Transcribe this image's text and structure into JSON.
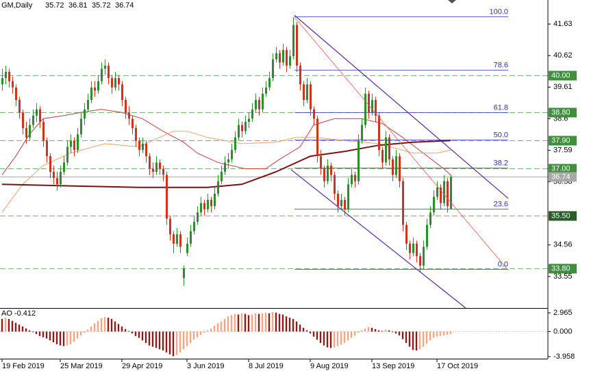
{
  "chart_data": [
    {
      "type": "candlestick",
      "title": "GM,Daily",
      "xlim": [
        -0.6,
        159.4
      ],
      "ylim": [
        32.54,
        42.4
      ],
      "yticks": [
        41.63,
        40.62,
        39.61,
        38.6,
        37.59,
        36.58,
        34.56,
        33.55
      ],
      "xticks": [
        {
          "value": 0,
          "label": "19 Feb 2019"
        },
        {
          "value": 17,
          "label": "25 Mar 2019"
        },
        {
          "value": 35,
          "label": "29 Apr 2019"
        },
        {
          "value": 54,
          "label": "3 Jun 2019"
        },
        {
          "value": 72,
          "label": "8 Jul 2019"
        },
        {
          "value": 90,
          "label": "9 Aug 2019"
        },
        {
          "value": 108,
          "label": "13 Sep 2019"
        },
        {
          "value": 127,
          "label": "17 Oct 2019"
        }
      ],
      "up_color": "#2e8b2e",
      "down_color": "#cc3322",
      "candles": [
        [
          39.7,
          40.2,
          39.5,
          39.9
        ],
        [
          39.9,
          40.3,
          39.7,
          40.1
        ],
        [
          40.1,
          40.2,
          39.6,
          39.8
        ],
        [
          39.8,
          39.95,
          39.4,
          39.6
        ],
        [
          39.6,
          39.7,
          39.0,
          39.2
        ],
        [
          39.2,
          39.3,
          38.6,
          38.8
        ],
        [
          38.8,
          38.9,
          38.1,
          38.3
        ],
        [
          38.3,
          38.5,
          37.8,
          38.0
        ],
        [
          38.0,
          38.6,
          37.9,
          38.4
        ],
        [
          38.4,
          38.9,
          38.3,
          38.7
        ],
        [
          38.7,
          39.1,
          38.5,
          38.9
        ],
        [
          38.9,
          39.0,
          38.3,
          38.5
        ],
        [
          38.5,
          38.6,
          37.7,
          37.9
        ],
        [
          37.9,
          38.0,
          37.2,
          37.4
        ],
        [
          37.4,
          37.5,
          36.7,
          36.9
        ],
        [
          36.9,
          37.1,
          36.5,
          36.7
        ],
        [
          36.7,
          36.9,
          36.3,
          36.5
        ],
        [
          36.5,
          37.1,
          36.4,
          36.9
        ],
        [
          36.9,
          37.4,
          36.8,
          37.2
        ],
        [
          37.2,
          37.9,
          37.1,
          37.7
        ],
        [
          37.7,
          38.1,
          37.5,
          37.9
        ],
        [
          37.9,
          38.0,
          37.4,
          37.6
        ],
        [
          37.6,
          38.3,
          37.5,
          38.1
        ],
        [
          38.1,
          38.8,
          38.0,
          38.6
        ],
        [
          38.6,
          39.1,
          38.4,
          38.9
        ],
        [
          38.9,
          39.4,
          38.8,
          39.2
        ],
        [
          39.2,
          39.8,
          39.1,
          39.6
        ],
        [
          39.6,
          39.8,
          39.3,
          39.5
        ],
        [
          39.5,
          40.0,
          39.4,
          39.8
        ],
        [
          39.8,
          40.4,
          39.7,
          40.2
        ],
        [
          40.2,
          40.5,
          40.0,
          40.3
        ],
        [
          40.3,
          40.4,
          39.7,
          39.9
        ],
        [
          39.9,
          40.0,
          39.4,
          39.6
        ],
        [
          39.6,
          40.1,
          39.5,
          39.9
        ],
        [
          39.9,
          40.0,
          39.5,
          39.7
        ],
        [
          39.7,
          39.8,
          39.0,
          39.2
        ],
        [
          39.2,
          39.3,
          38.6,
          38.8
        ],
        [
          38.8,
          39.0,
          38.4,
          38.6
        ],
        [
          38.6,
          38.7,
          38.1,
          38.3
        ],
        [
          38.3,
          38.4,
          37.7,
          37.9
        ],
        [
          37.9,
          38.0,
          37.4,
          37.6
        ],
        [
          37.6,
          38.0,
          37.5,
          37.8
        ],
        [
          37.8,
          37.9,
          37.2,
          37.4
        ],
        [
          37.4,
          37.5,
          36.8,
          37.0
        ],
        [
          37.0,
          37.2,
          36.7,
          36.9
        ],
        [
          36.9,
          37.4,
          36.8,
          37.2
        ],
        [
          37.2,
          37.3,
          36.8,
          37.0
        ],
        [
          37.0,
          37.1,
          36.6,
          36.8
        ],
        [
          36.8,
          36.9,
          35.2,
          35.4
        ],
        [
          35.4,
          35.5,
          34.7,
          34.9
        ],
        [
          34.9,
          35.0,
          34.3,
          34.6
        ],
        [
          34.6,
          35.1,
          34.5,
          34.9
        ],
        [
          34.9,
          35.0,
          34.3,
          34.5
        ],
        [
          33.5,
          33.9,
          33.25,
          33.8
        ],
        [
          34.3,
          34.8,
          34.2,
          34.6
        ],
        [
          34.6,
          35.2,
          34.5,
          35.0
        ],
        [
          35.0,
          35.5,
          34.9,
          35.3
        ],
        [
          35.3,
          35.8,
          35.2,
          35.6
        ],
        [
          35.6,
          36.1,
          35.5,
          35.9
        ],
        [
          35.9,
          36.0,
          35.5,
          35.7
        ],
        [
          35.7,
          36.2,
          35.6,
          36.0
        ],
        [
          36.0,
          36.1,
          35.6,
          35.8
        ],
        [
          35.8,
          36.4,
          35.7,
          36.2
        ],
        [
          36.2,
          36.8,
          36.1,
          36.6
        ],
        [
          36.6,
          37.1,
          36.5,
          36.9
        ],
        [
          36.9,
          37.4,
          36.8,
          37.2
        ],
        [
          37.2,
          37.5,
          37.0,
          37.3
        ],
        [
          37.3,
          37.8,
          37.2,
          37.6
        ],
        [
          37.6,
          38.2,
          37.5,
          38.0
        ],
        [
          38.0,
          38.6,
          37.9,
          38.4
        ],
        [
          38.4,
          38.5,
          38.0,
          38.2
        ],
        [
          38.2,
          38.7,
          38.1,
          38.5
        ],
        [
          38.5,
          38.8,
          38.3,
          38.6
        ],
        [
          38.6,
          39.1,
          38.5,
          38.9
        ],
        [
          38.9,
          39.4,
          38.8,
          39.2
        ],
        [
          39.2,
          39.3,
          38.7,
          38.9
        ],
        [
          38.9,
          39.6,
          38.8,
          39.4
        ],
        [
          39.4,
          39.8,
          39.3,
          39.6
        ],
        [
          39.6,
          40.1,
          39.5,
          39.9
        ],
        [
          39.9,
          40.7,
          39.8,
          40.5
        ],
        [
          40.5,
          40.9,
          40.4,
          40.7
        ],
        [
          40.7,
          40.8,
          40.2,
          40.4
        ],
        [
          40.4,
          41.0,
          40.3,
          40.8
        ],
        [
          40.8,
          40.9,
          40.1,
          40.3
        ],
        [
          40.3,
          40.8,
          40.2,
          40.6
        ],
        [
          40.6,
          41.85,
          40.5,
          41.6
        ],
        [
          41.6,
          41.7,
          40.1,
          40.3
        ],
        [
          40.3,
          40.4,
          39.5,
          39.7
        ],
        [
          39.7,
          39.8,
          39.0,
          39.2
        ],
        [
          39.2,
          39.9,
          39.1,
          39.7
        ],
        [
          39.7,
          39.8,
          38.7,
          38.9
        ],
        [
          38.9,
          39.0,
          38.4,
          38.6
        ],
        [
          38.6,
          38.7,
          37.2,
          37.4
        ],
        [
          37.4,
          37.6,
          36.8,
          37.0
        ],
        [
          37.0,
          37.1,
          36.4,
          36.6
        ],
        [
          36.6,
          37.3,
          36.5,
          37.1
        ],
        [
          37.1,
          37.2,
          36.6,
          36.8
        ],
        [
          36.8,
          36.9,
          36.0,
          36.2
        ],
        [
          36.2,
          36.3,
          35.6,
          35.8
        ],
        [
          35.8,
          36.2,
          35.7,
          36.0
        ],
        [
          36.0,
          36.1,
          35.5,
          35.7
        ],
        [
          35.7,
          36.7,
          35.6,
          36.5
        ],
        [
          36.5,
          37.0,
          36.4,
          36.8
        ],
        [
          36.8,
          36.9,
          36.4,
          36.6
        ],
        [
          36.6,
          38.1,
          36.5,
          37.9
        ],
        [
          37.9,
          38.6,
          37.8,
          38.4
        ],
        [
          38.4,
          39.6,
          38.3,
          39.4
        ],
        [
          39.4,
          39.5,
          38.6,
          38.8
        ],
        [
          38.8,
          39.4,
          38.7,
          39.2
        ],
        [
          39.2,
          39.3,
          38.5,
          38.7
        ],
        [
          38.7,
          38.8,
          37.4,
          37.6
        ],
        [
          37.6,
          37.7,
          37.0,
          37.2
        ],
        [
          37.2,
          38.2,
          37.1,
          38.0
        ],
        [
          38.0,
          38.1,
          37.1,
          37.3
        ],
        [
          37.3,
          37.4,
          36.6,
          36.8
        ],
        [
          36.8,
          37.6,
          36.7,
          37.4
        ],
        [
          37.4,
          37.5,
          36.4,
          36.6
        ],
        [
          36.6,
          36.7,
          35.0,
          35.2
        ],
        [
          35.2,
          35.3,
          34.4,
          34.6
        ],
        [
          34.6,
          34.7,
          34.1,
          34.3
        ],
        [
          34.3,
          34.8,
          34.2,
          34.6
        ],
        [
          34.6,
          34.7,
          34.0,
          34.2
        ],
        [
          34.2,
          34.3,
          33.7,
          33.9
        ],
        [
          33.9,
          34.7,
          33.8,
          34.5
        ],
        [
          34.5,
          35.4,
          34.4,
          35.2
        ],
        [
          35.2,
          35.8,
          35.1,
          35.6
        ],
        [
          35.6,
          36.3,
          35.5,
          36.1
        ],
        [
          36.1,
          36.6,
          36.0,
          36.4
        ],
        [
          36.4,
          36.5,
          35.7,
          35.9
        ],
        [
          35.9,
          36.8,
          35.8,
          36.6
        ],
        [
          36.6,
          36.7,
          35.6,
          35.8
        ],
        [
          35.72,
          36.81,
          35.72,
          36.74
        ]
      ],
      "series": [
        {
          "color": "#c04040",
          "width": 1,
          "x": [
            0,
            4,
            8,
            12,
            18,
            23,
            29,
            35,
            41,
            47,
            53,
            57,
            63,
            71,
            77,
            81,
            87,
            91,
            97,
            105,
            111,
            117,
            123,
            129,
            131
          ],
          "values": [
            36.8,
            37.4,
            38.1,
            38.6,
            38.7,
            38.8,
            38.9,
            38.8,
            38.6,
            38.2,
            37.85,
            37.5,
            37.2,
            37.0,
            37.0,
            37.3,
            37.7,
            38.4,
            38.6,
            38.6,
            38.45,
            38.0,
            37.5,
            37.0,
            36.8
          ]
        },
        {
          "color": "#f0a070",
          "width": 1,
          "x": [
            0,
            6,
            12,
            20,
            30,
            40,
            50,
            54,
            60,
            70,
            80,
            86,
            92,
            100,
            110,
            120,
            127,
            131
          ],
          "values": [
            35.6,
            36.5,
            37.1,
            37.5,
            37.8,
            37.7,
            38.2,
            38.2,
            38.0,
            37.8,
            37.85,
            38.0,
            38.0,
            37.9,
            37.8,
            37.5,
            37.5,
            37.6
          ]
        },
        {
          "color": "#7a1010",
          "width": 2,
          "x": [
            0,
            20,
            40,
            60,
            70,
            80,
            90,
            100,
            110,
            120,
            131
          ],
          "values": [
            36.5,
            36.45,
            36.4,
            36.4,
            36.5,
            36.9,
            37.4,
            37.55,
            37.75,
            37.85,
            37.9
          ]
        }
      ],
      "levels": [
        {
          "value": 40,
          "label": "40.00",
          "color": "#3f8f3f"
        },
        {
          "value": 38.8,
          "label": "38.80",
          "color": "#3f8f3f"
        },
        {
          "value": 37.9,
          "label": "37.90",
          "color": "#3f8f3f"
        },
        {
          "value": 37,
          "label": "37.00",
          "color": "#3f8f3f"
        },
        {
          "value": 35.5,
          "label": "35.50",
          "color": "#2b5d2b"
        },
        {
          "value": 33.8,
          "label": "33.80",
          "color": "#3f8f3f"
        }
      ],
      "level_line_color": "#7fb07f",
      "price_line_color": "#a8a8a8",
      "fib": {
        "color": "#3030c0",
        "x": [
          85.4,
          147.8
        ],
        "levels": [
          {
            "label": "100.0",
            "price": 41.87
          },
          {
            "label": "78.6",
            "price": 40.16
          },
          {
            "label": "61.8",
            "price": 38.8
          },
          {
            "label": "50.0",
            "price": 37.93
          },
          {
            "label": "38.2",
            "price": 37.03
          },
          {
            "label": "23.6",
            "price": 35.72
          },
          {
            "label": "0.0",
            "price": 33.79
          }
        ]
      },
      "trendlines": [
        {
          "color": "#5a2a9a",
          "width": 1.2,
          "points": [
            [
              85.4,
              41.91
            ],
            [
              147.8,
              36.05
            ]
          ]
        },
        {
          "color": "#5a2a9a",
          "width": 1.2,
          "points": [
            [
              84.4,
              36.97
            ],
            [
              135.4,
              32.54
            ]
          ]
        },
        {
          "color": "#e06050",
          "width": 0.8,
          "points": [
            [
              85.4,
              41.85
            ],
            [
              147.8,
              33.75
            ]
          ]
        }
      ]
    },
    {
      "type": "bar",
      "title": "AO -0.412",
      "ylim": [
        -4.29,
        3.62
      ],
      "yticks": [
        2.965,
        {
          "value": 0,
          "label": "0.000"
        },
        -3.958
      ],
      "up_color": "#f4a582",
      "down_color": "#8b1a1a",
      "values": [
        2.0,
        2.2,
        2.0,
        1.7,
        1.4,
        1.1,
        0.8,
        0.5,
        0.2,
        -0.1,
        -0.4,
        -0.7,
        -0.9,
        -1.1,
        -1.4,
        -1.7,
        -2.0,
        -2.2,
        -2.3,
        -2.2,
        -2.0,
        -1.6,
        -1.1,
        -0.6,
        -0.2,
        0.3,
        0.8,
        1.3,
        1.7,
        2.1,
        2.3,
        2.2,
        2.0,
        1.6,
        1.2,
        0.8,
        0.4,
        0.1,
        -0.3,
        -0.7,
        -1.0,
        -1.4,
        -1.8,
        -2.2,
        -2.4,
        -2.6,
        -2.8,
        -3.0,
        -3.3,
        -3.6,
        -3.9,
        -3.7,
        -3.3,
        -2.8,
        -2.3,
        -1.8,
        -1.3,
        -0.9,
        -0.5,
        -0.2,
        0.2,
        0.5,
        0.9,
        1.3,
        1.6,
        2.0,
        2.4,
        2.6,
        2.8,
        2.7,
        2.9,
        2.8,
        2.6,
        2.7,
        2.9,
        2.8,
        2.9,
        3.0,
        2.9,
        3.1,
        3.0,
        2.8,
        2.7,
        2.4,
        2.2,
        2.0,
        1.6,
        1.1,
        0.6,
        0.2,
        -0.3,
        -0.8,
        -1.3,
        -1.8,
        -2.2,
        -2.5,
        -2.6,
        -2.5,
        -2.3,
        -2.1,
        -1.8,
        -1.4,
        -1.0,
        -0.6,
        -0.2,
        0.2,
        0.5,
        0.7,
        0.6,
        0.4,
        0.2,
        0.1,
        0.3,
        0.2,
        -0.1,
        -0.3,
        -0.6,
        -1.2,
        -1.8,
        -2.4,
        -2.9,
        -3.0,
        -2.8,
        -2.4,
        -1.9,
        -1.4,
        -1.0,
        -0.8,
        -0.7,
        -0.6,
        -0.5,
        -0.412
      ]
    }
  ]
}
